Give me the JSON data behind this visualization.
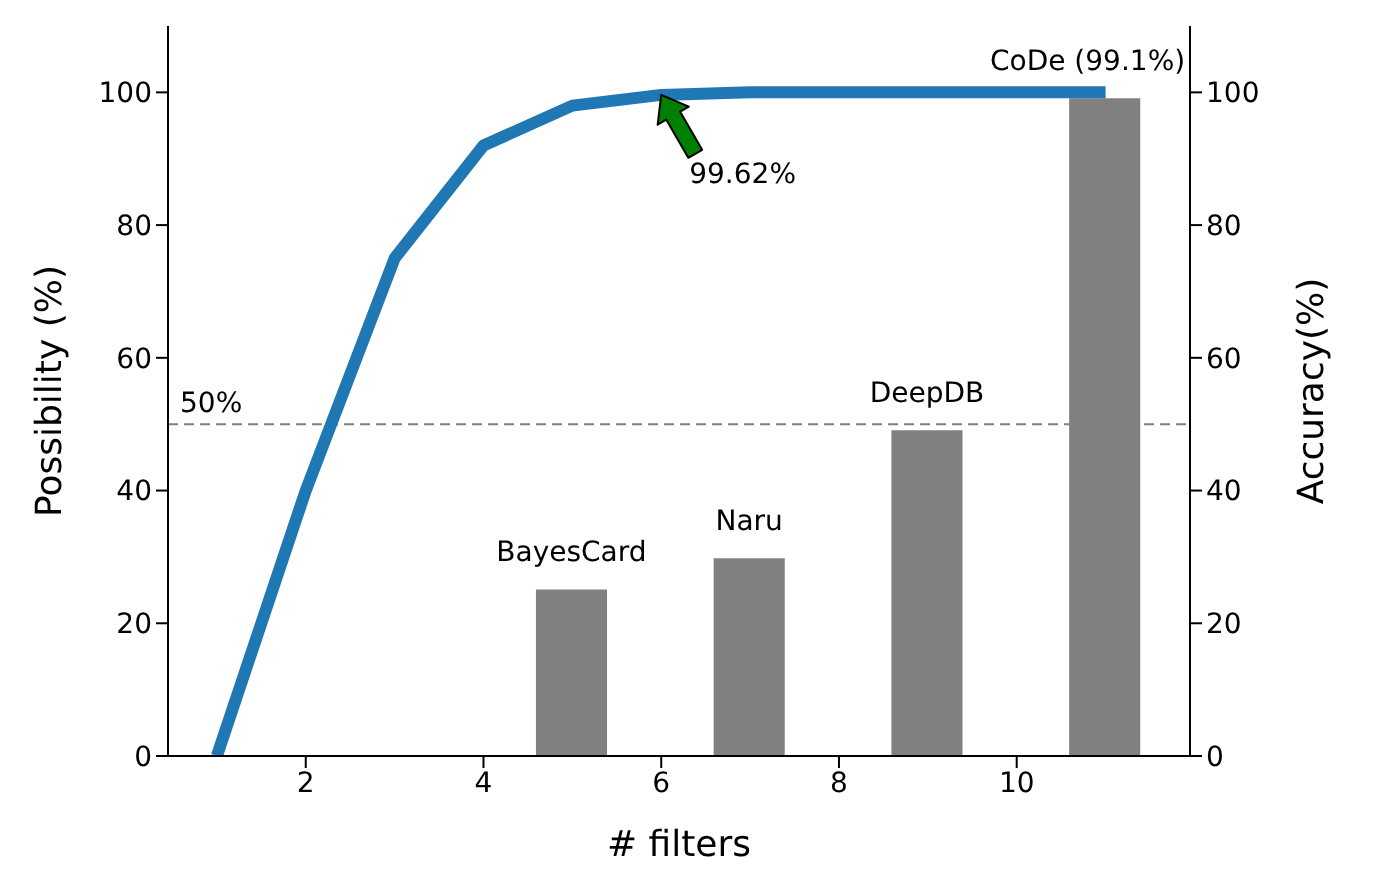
{
  "chart_data": {
    "type": "line",
    "xlabel": "# filters",
    "ylabel": "Possibility (%)",
    "y2label": "Accuracy(%)",
    "xlim": [
      0.45,
      11.95
    ],
    "xticks": [
      2,
      4,
      6,
      8,
      10
    ],
    "ylim": [
      0,
      110
    ],
    "yticks": [
      0,
      20,
      40,
      60,
      80,
      100
    ],
    "y2lim": [
      0,
      110
    ],
    "y2ticks": [
      0,
      20,
      40,
      60,
      80,
      100
    ],
    "series": [
      {
        "color": "#1f77b4",
        "x": [
          1,
          2,
          3,
          4,
          5,
          6,
          7,
          8,
          9,
          10,
          11
        ],
        "values": [
          0,
          40,
          75,
          92,
          98,
          99.62,
          100,
          100,
          100,
          100,
          100
        ]
      },
      {
        "type": "bar",
        "axis": "y2",
        "color": "#808080",
        "x": [
          5,
          7,
          9,
          11
        ],
        "values": [
          25.1,
          29.8,
          49.1,
          99.1
        ],
        "value_labels": [
          "BayesCard",
          "Naru",
          "DeepDB",
          "CoDe (99.1%)"
        ]
      }
    ],
    "ref_lines": [
      {
        "axis": "y",
        "value": 50,
        "label": "50%",
        "color": "#808080",
        "line_style": "dashed"
      }
    ],
    "annotations": [
      {
        "text": "99.62%",
        "x": 6,
        "y": 99.62
      }
    ],
    "marker": "none",
    "line_style": "solid",
    "grid": false,
    "legend": false
  }
}
